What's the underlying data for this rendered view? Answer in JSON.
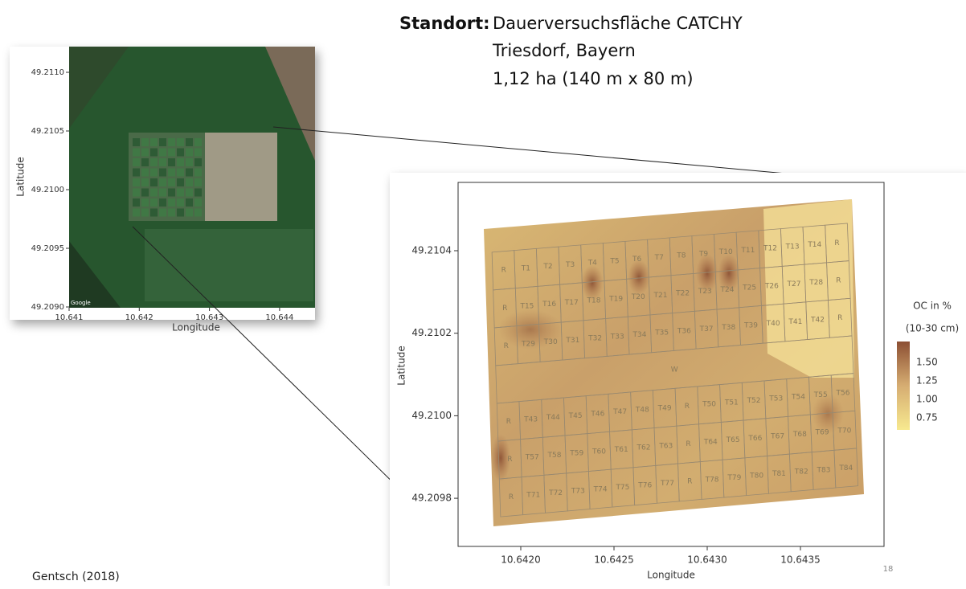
{
  "header": {
    "label": "Standort:",
    "lines": [
      "Dauerversuchsfläche CATCHY",
      "Triesdorf, Bayern",
      "1,12 ha  (140 m x 80 m)"
    ]
  },
  "left_map": {
    "credit": "Google",
    "x_label": "Longitude",
    "y_label": "Latitude",
    "xticks": [
      "10.641",
      "10.642",
      "10.643",
      "10.644"
    ],
    "yticks": [
      "49.2110",
      "49.2105",
      "49.2100",
      "49.2095",
      "49.2090"
    ]
  },
  "right_map": {
    "x_label": "Longitude",
    "y_label": "Latitude",
    "xticks": [
      "10.6420",
      "10.6425",
      "10.6430",
      "10.6435"
    ],
    "yticks": [
      "49.2104",
      "49.2102",
      "49.2100",
      "49.2098"
    ],
    "plots": [
      [
        "R",
        "T1",
        "T2",
        "T3",
        "T4",
        "T5",
        "T6",
        "T7",
        "T8",
        "T9",
        "T10",
        "T11",
        "T12",
        "T13",
        "T14",
        "R"
      ],
      [
        "R",
        "T15",
        "T16",
        "T17",
        "T18",
        "T19",
        "T20",
        "T21",
        "T22",
        "T23",
        "T24",
        "T25",
        "T26",
        "T27",
        "T28",
        "R"
      ],
      [
        "R",
        "T29",
        "T30",
        "T31",
        "T32",
        "T33",
        "T34",
        "T35",
        "T36",
        "T37",
        "T38",
        "T39",
        "T40",
        "T41",
        "T42",
        "R"
      ],
      [
        "W"
      ],
      [
        "R",
        "T43",
        "T44",
        "T45",
        "T46",
        "T47",
        "T48",
        "T49",
        "R",
        "T50",
        "T51",
        "T52",
        "T53",
        "T54",
        "T55",
        "T56"
      ],
      [
        "R",
        "T57",
        "T58",
        "T59",
        "T60",
        "T61",
        "T62",
        "T63",
        "R",
        "T64",
        "T65",
        "T66",
        "T67",
        "T68",
        "T69",
        "T70"
      ],
      [
        "R",
        "T71",
        "T72",
        "T73",
        "T74",
        "T75",
        "T76",
        "T77",
        "R",
        "T78",
        "T79",
        "T80",
        "T81",
        "T82",
        "T83",
        "T84"
      ]
    ]
  },
  "legend": {
    "title": "OC in %",
    "subtitle": "(10-30 cm)",
    "ticks": [
      "1.50",
      "1.25",
      "1.00",
      "0.75"
    ]
  },
  "footer": {
    "source": "Gentsch (2018)",
    "page": "18"
  }
}
